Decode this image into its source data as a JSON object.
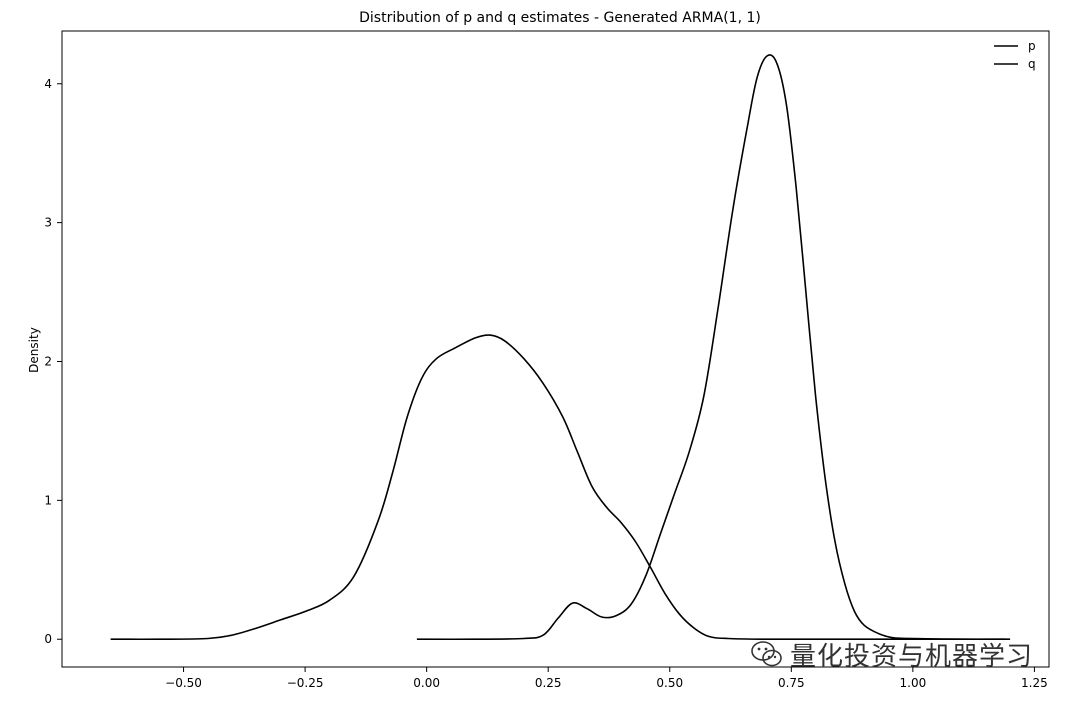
{
  "chart_data": {
    "type": "line",
    "title": "Distribution of p and q estimates - Generated ARMA(1, 1)",
    "xlabel": "",
    "ylabel": "Density",
    "xlim": [
      -0.75,
      1.28
    ],
    "ylim": [
      -0.2,
      4.38
    ],
    "xticks": [
      -0.5,
      -0.25,
      0.0,
      0.25,
      0.5,
      0.75,
      1.0,
      1.25
    ],
    "xtick_labels": [
      "−0.50",
      "−0.25",
      "0.00",
      "0.25",
      "0.50",
      "0.75",
      "1.00",
      "1.25"
    ],
    "yticks": [
      0,
      1,
      2,
      3,
      4
    ],
    "ytick_labels": [
      "0",
      "1",
      "2",
      "3",
      "4"
    ],
    "legend": {
      "position": "top-right"
    },
    "grid": false,
    "series": [
      {
        "name": "p",
        "color": "#000000",
        "points": [
          [
            -0.65,
            0.0
          ],
          [
            -0.55,
            0.0
          ],
          [
            -0.45,
            0.005
          ],
          [
            -0.4,
            0.03
          ],
          [
            -0.35,
            0.08
          ],
          [
            -0.3,
            0.14
          ],
          [
            -0.25,
            0.2
          ],
          [
            -0.2,
            0.28
          ],
          [
            -0.15,
            0.45
          ],
          [
            -0.1,
            0.85
          ],
          [
            -0.07,
            1.2
          ],
          [
            -0.04,
            1.6
          ],
          [
            -0.01,
            1.88
          ],
          [
            0.02,
            2.02
          ],
          [
            0.06,
            2.1
          ],
          [
            0.1,
            2.17
          ],
          [
            0.13,
            2.19
          ],
          [
            0.16,
            2.15
          ],
          [
            0.2,
            2.02
          ],
          [
            0.24,
            1.84
          ],
          [
            0.28,
            1.6
          ],
          [
            0.31,
            1.35
          ],
          [
            0.34,
            1.1
          ],
          [
            0.37,
            0.95
          ],
          [
            0.4,
            0.84
          ],
          [
            0.43,
            0.7
          ],
          [
            0.46,
            0.52
          ],
          [
            0.49,
            0.33
          ],
          [
            0.52,
            0.18
          ],
          [
            0.55,
            0.08
          ],
          [
            0.58,
            0.02
          ],
          [
            0.62,
            0.005
          ],
          [
            0.7,
            0.0
          ],
          [
            0.85,
            0.0
          ],
          [
            1.0,
            0.0
          ],
          [
            1.2,
            0.0
          ]
        ]
      },
      {
        "name": "q",
        "color": "#000000",
        "points": [
          [
            -0.02,
            0.0
          ],
          [
            0.1,
            0.0
          ],
          [
            0.2,
            0.005
          ],
          [
            0.24,
            0.03
          ],
          [
            0.27,
            0.15
          ],
          [
            0.3,
            0.26
          ],
          [
            0.33,
            0.22
          ],
          [
            0.36,
            0.16
          ],
          [
            0.39,
            0.17
          ],
          [
            0.42,
            0.25
          ],
          [
            0.45,
            0.45
          ],
          [
            0.48,
            0.75
          ],
          [
            0.51,
            1.05
          ],
          [
            0.54,
            1.35
          ],
          [
            0.57,
            1.75
          ],
          [
            0.6,
            2.4
          ],
          [
            0.63,
            3.1
          ],
          [
            0.66,
            3.7
          ],
          [
            0.68,
            4.05
          ],
          [
            0.7,
            4.2
          ],
          [
            0.72,
            4.15
          ],
          [
            0.74,
            3.85
          ],
          [
            0.76,
            3.25
          ],
          [
            0.78,
            2.5
          ],
          [
            0.8,
            1.75
          ],
          [
            0.82,
            1.15
          ],
          [
            0.84,
            0.7
          ],
          [
            0.86,
            0.4
          ],
          [
            0.88,
            0.2
          ],
          [
            0.9,
            0.1
          ],
          [
            0.93,
            0.04
          ],
          [
            0.96,
            0.01
          ],
          [
            1.0,
            0.005
          ],
          [
            1.1,
            0.0
          ],
          [
            1.19,
            0.0
          ]
        ]
      }
    ]
  },
  "watermark": {
    "text": "量化投资与机器学习",
    "icon": "wechat-icon"
  }
}
